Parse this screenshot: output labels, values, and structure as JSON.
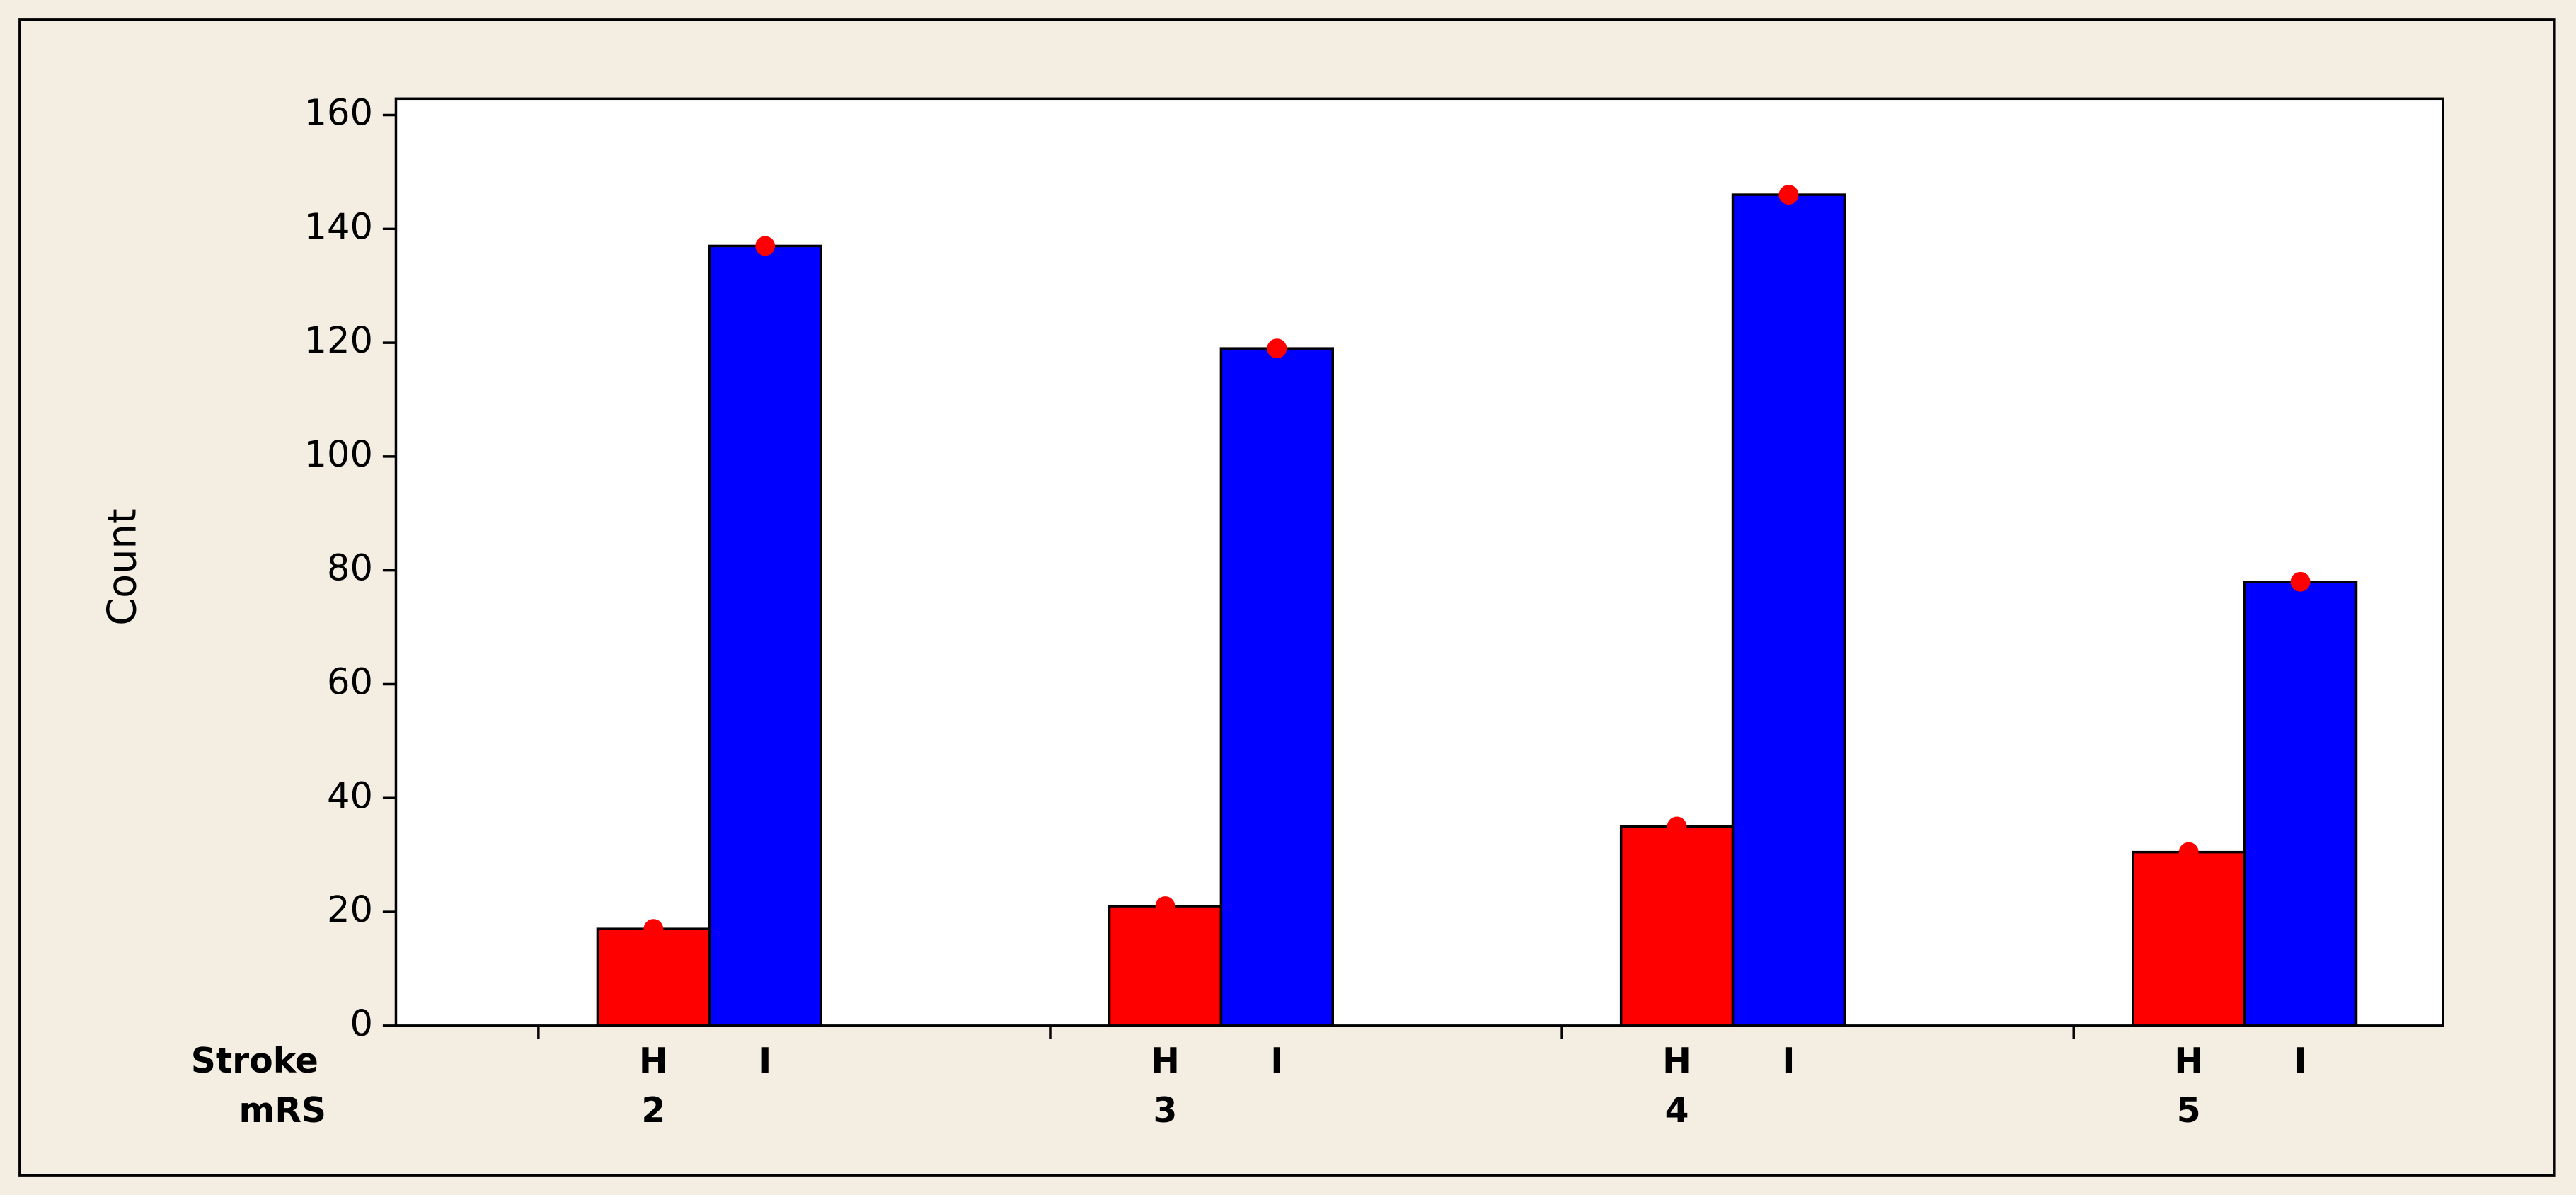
{
  "chart_data": {
    "type": "bar",
    "y_label": "Count",
    "x_row_labels": [
      "Stroke",
      "mRS"
    ],
    "categories": [
      "2",
      "3",
      "4",
      "5"
    ],
    "series": [
      {
        "name": "H",
        "color": "#ff0000",
        "values": [
          17,
          21,
          35,
          30.5
        ]
      },
      {
        "name": "I",
        "color": "#0000ff",
        "values": [
          137,
          119,
          146,
          78
        ]
      }
    ],
    "marker_color": "#ff0000",
    "ylim": [
      0,
      160
    ],
    "yticks": [
      0,
      20,
      40,
      60,
      80,
      100,
      120,
      140,
      160
    ]
  }
}
